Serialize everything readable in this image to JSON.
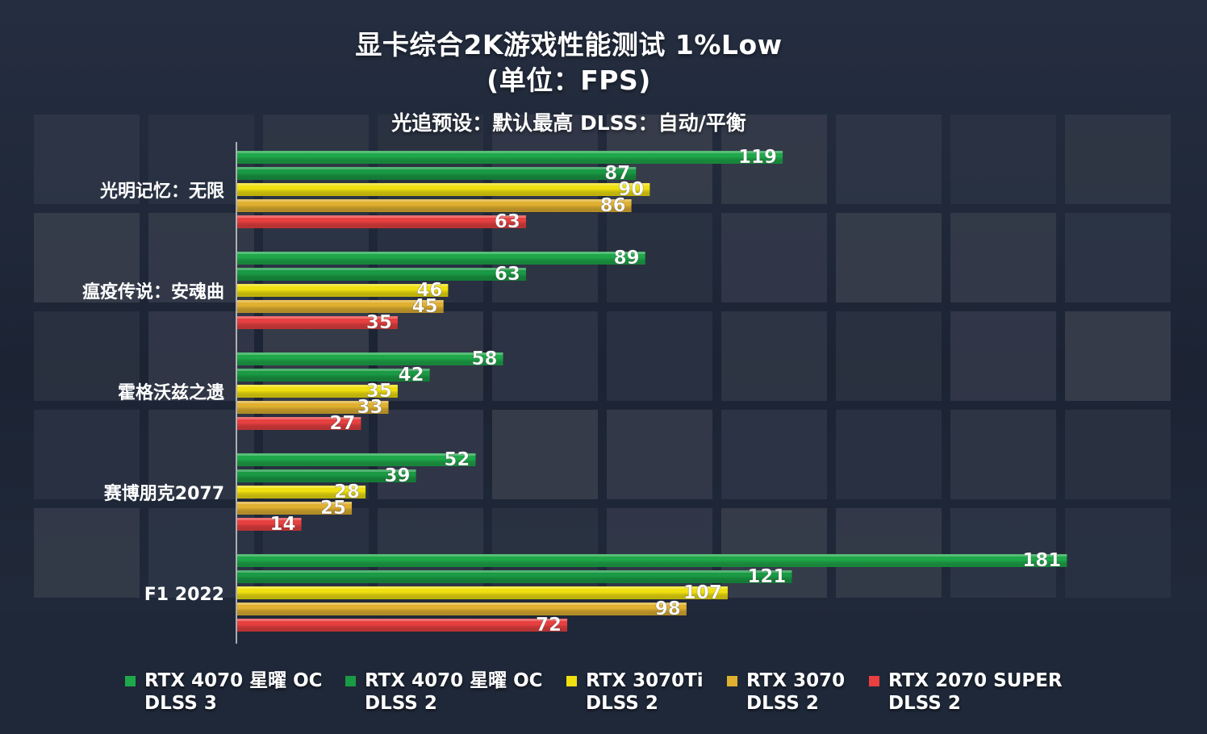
{
  "colors": {
    "rtx4070_dlss3": "#1fa84a",
    "rtx4070_dlss2": "#1a9a44",
    "rtx3070ti": "#f0e010",
    "rtx3070": "#e0b030",
    "rtx2070super": "#e84040"
  },
  "chart_data": {
    "type": "bar",
    "orientation": "horizontal",
    "title_line1": "显卡综合2K游戏性能测试 1%Low",
    "title_line2": "(单位：FPS)",
    "subtitle": "光追预设：默认最高   DLSS：自动/平衡",
    "categories": [
      "光明记忆：无限",
      "瘟疫传说：安魂曲",
      "霍格沃兹之遗",
      "赛博朋克2077",
      "F1 2022"
    ],
    "series": [
      {
        "name_line1": "RTX 4070 星曜 OC",
        "name_line2": "DLSS 3",
        "color_key": "rtx4070_dlss3",
        "values": [
          119,
          89,
          58,
          52,
          181
        ]
      },
      {
        "name_line1": "RTX 4070 星曜 OC",
        "name_line2": "DLSS 2",
        "color_key": "rtx4070_dlss2",
        "values": [
          87,
          63,
          42,
          39,
          121
        ]
      },
      {
        "name_line1": "RTX 3070Ti",
        "name_line2": "DLSS 2",
        "color_key": "rtx3070ti",
        "values": [
          90,
          46,
          35,
          28,
          107
        ]
      },
      {
        "name_line1": "RTX 3070",
        "name_line2": "DLSS 2",
        "color_key": "rtx3070",
        "values": [
          86,
          45,
          33,
          25,
          98
        ]
      },
      {
        "name_line1": "RTX 2070 SUPER",
        "name_line2": "DLSS 2",
        "color_key": "rtx2070super",
        "values": [
          63,
          35,
          27,
          14,
          72
        ]
      }
    ],
    "xlim": [
      0,
      182
    ],
    "legend_position": "bottom",
    "grid": false
  }
}
